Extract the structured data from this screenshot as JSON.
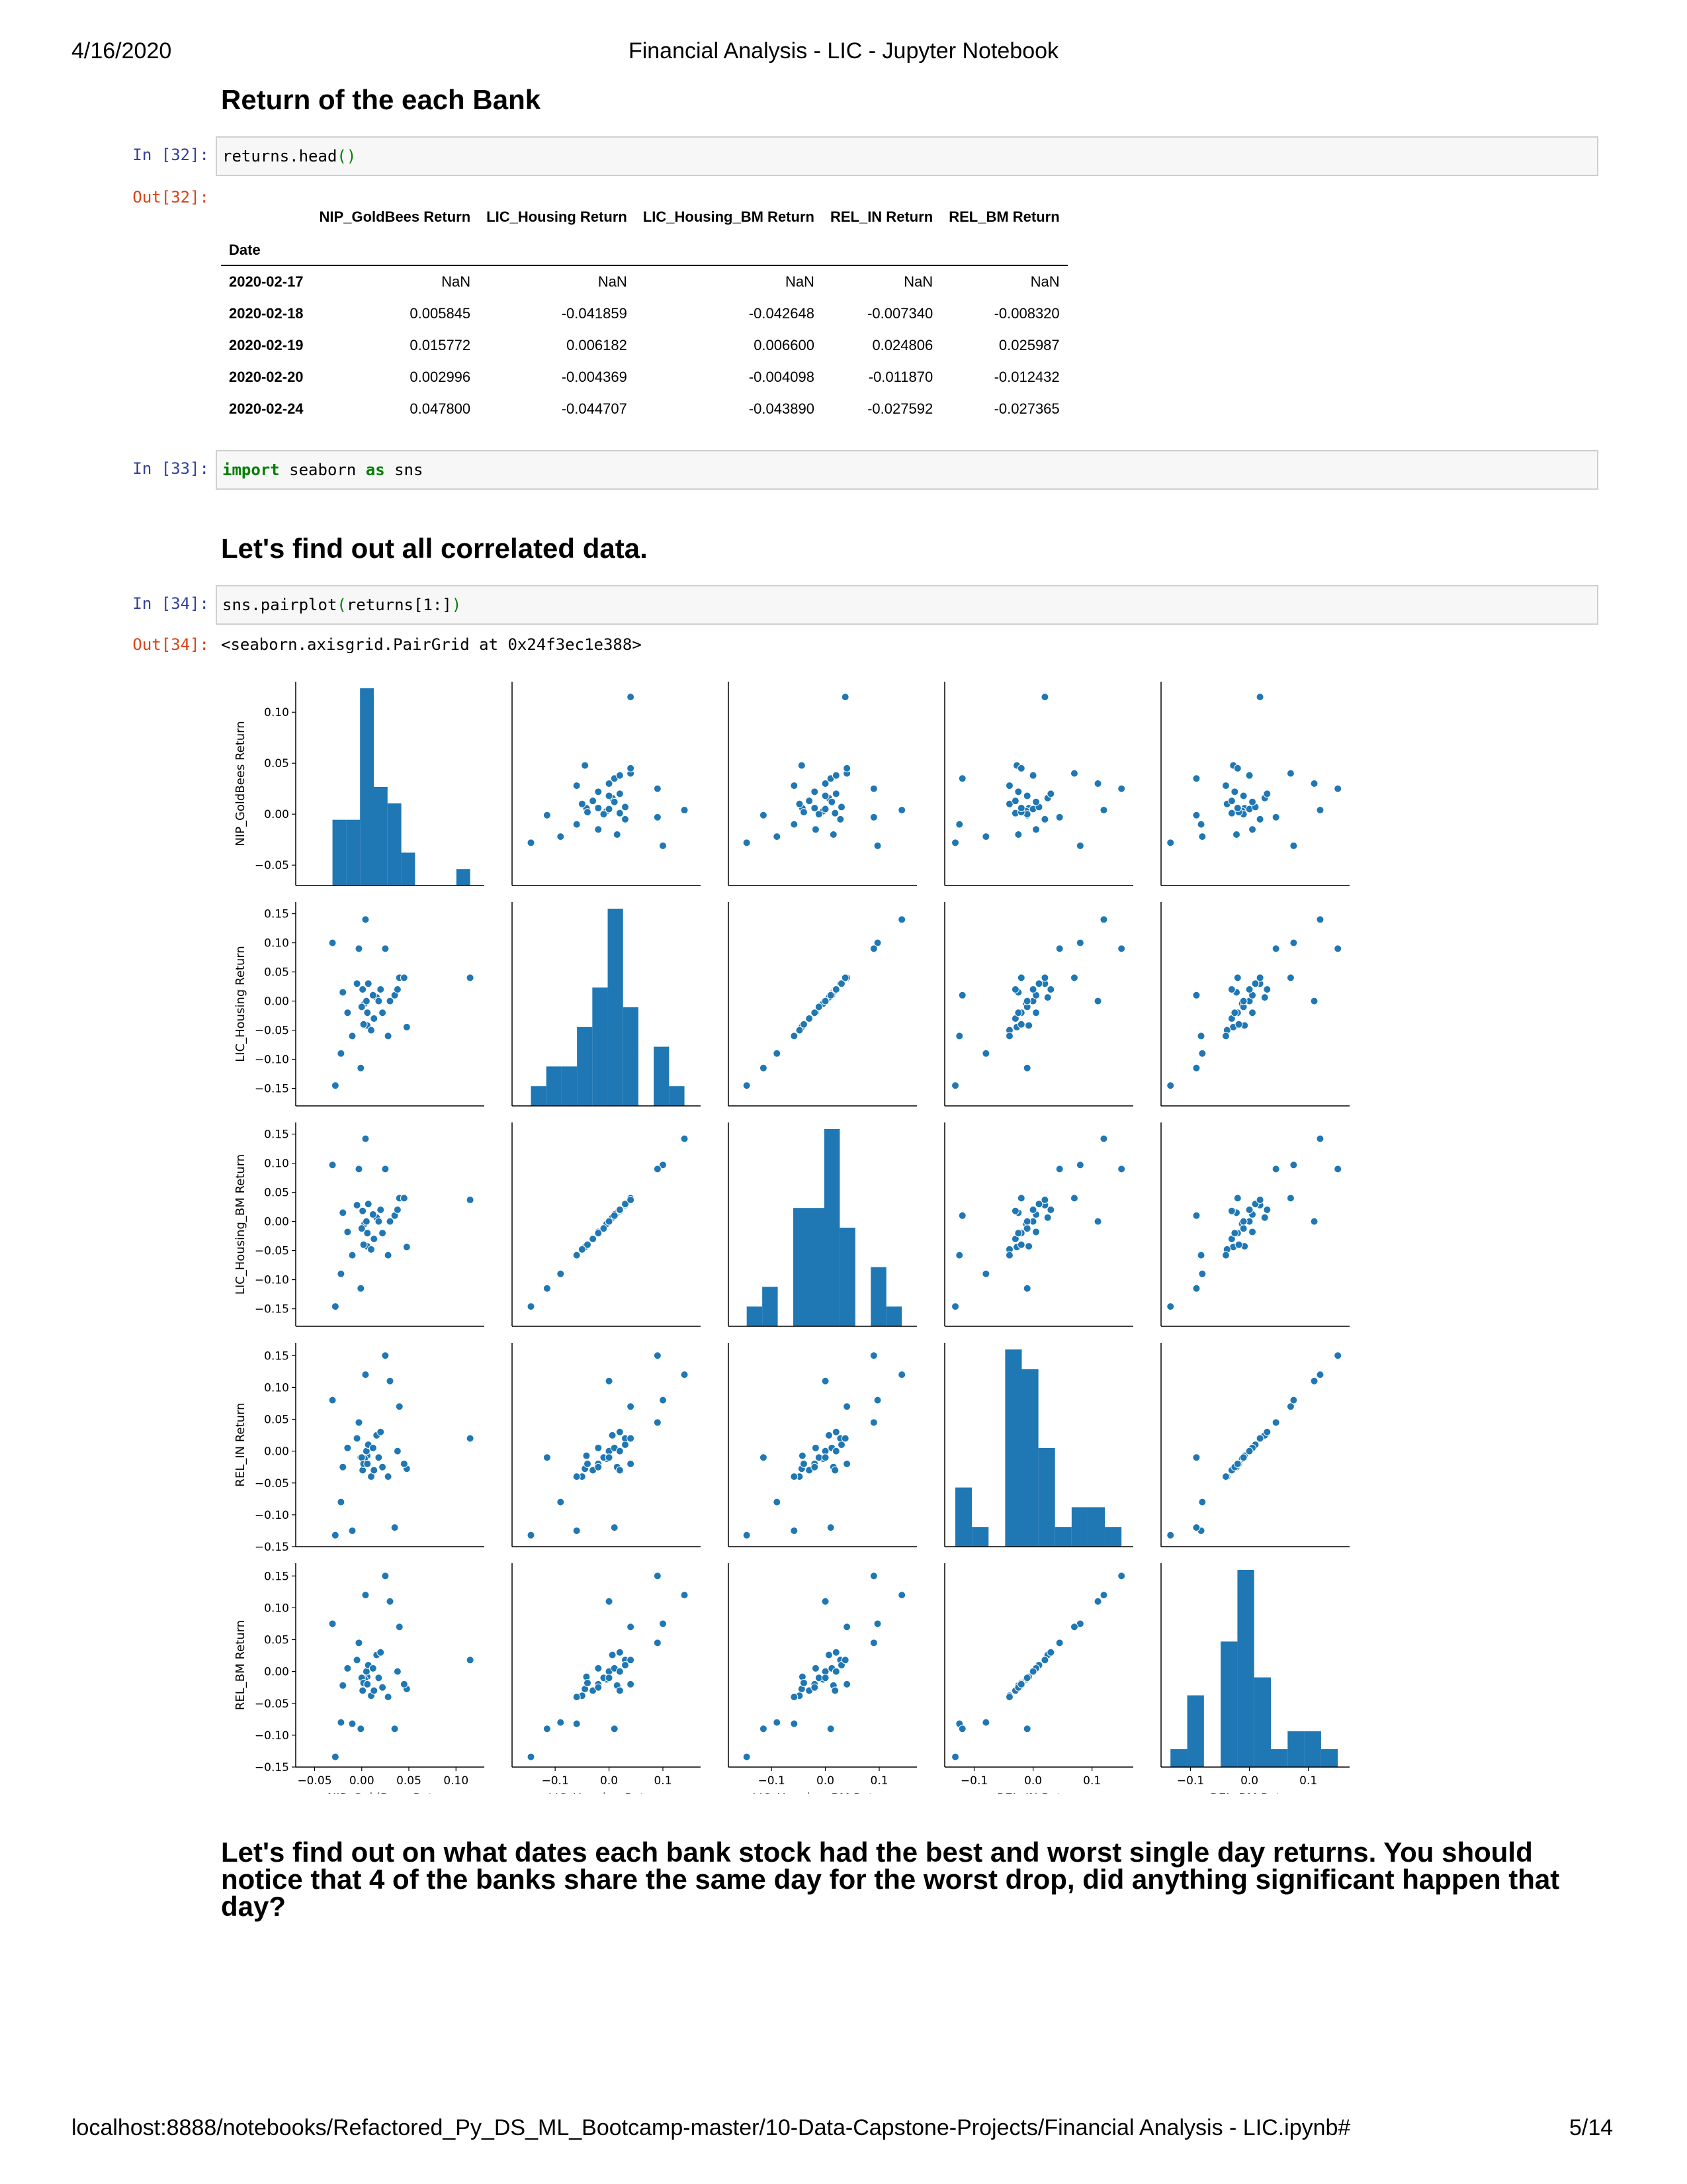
{
  "print_header": {
    "date": "4/16/2020",
    "title": "Financial Analysis - LIC - Jupyter Notebook"
  },
  "print_footer": {
    "url": "localhost:8888/notebooks/Refactored_Py_DS_ML_Bootcamp-master/10-Data-Capstone-Projects/Financial Analysis - LIC.ipynb#",
    "page": "5/14"
  },
  "cells": {
    "h_returns": "Return of the each Bank",
    "c32": {
      "in_prompt": "In [32]:",
      "code_a": "returns.head",
      "code_b": "()",
      "out_prompt": "Out[32]:"
    },
    "c33": {
      "in_prompt": "In [33]:",
      "kw_import": "import",
      "mod": " seaborn ",
      "kw_as": "as",
      "alias": " sns"
    },
    "h_corr": "Let's find out all correlated data.",
    "c34": {
      "in_prompt": "In [34]:",
      "code_a": "sns.pairplot",
      "code_b": "(",
      "code_c": "returns[1:]",
      "code_d": ")",
      "out_prompt": "Out[34]:",
      "out_text": "<seaborn.axisgrid.PairGrid at 0x24f3ec1e388>"
    },
    "para": "Let's find out on what dates each bank stock had the best and worst single day returns. You should notice that 4 of the banks share the same day for the worst drop, did anything significant happen that day?"
  },
  "table": {
    "columns": [
      "NIP_GoldBees Return",
      "LIC_Housing Return",
      "LIC_Housing_BM Return",
      "REL_IN Return",
      "REL_BM Return"
    ],
    "index_name": "Date",
    "rows": [
      {
        "date": "2020-02-17",
        "values": [
          "NaN",
          "NaN",
          "NaN",
          "NaN",
          "NaN"
        ]
      },
      {
        "date": "2020-02-18",
        "values": [
          "0.005845",
          "-0.041859",
          "-0.042648",
          "-0.007340",
          "-0.008320"
        ]
      },
      {
        "date": "2020-02-19",
        "values": [
          "0.015772",
          "0.006182",
          "0.006600",
          "0.024806",
          "0.025987"
        ]
      },
      {
        "date": "2020-02-20",
        "values": [
          "0.002996",
          "-0.004369",
          "-0.004098",
          "-0.011870",
          "-0.012432"
        ]
      },
      {
        "date": "2020-02-24",
        "values": [
          "0.047800",
          "-0.044707",
          "-0.043890",
          "-0.027592",
          "-0.027365"
        ]
      }
    ]
  },
  "chart_data": {
    "type": "scatter",
    "variables": [
      "NIP_GoldBees Return",
      "LIC_Housing Return",
      "LIC_Housing_BM Return",
      "REL_IN Return",
      "REL_BM Return"
    ],
    "color": "#1f77b4",
    "diagonal": "histogram",
    "ticks": [
      [
        "-0.05",
        "0.00",
        "0.05",
        "0.10"
      ],
      [
        "-0.1",
        "0.0",
        "0.1"
      ],
      [
        "-0.1",
        "0.0",
        "0.1"
      ],
      [
        "-0.1",
        "0.0",
        "0.1"
      ],
      [
        "-0.1",
        "0.0",
        "0.1"
      ]
    ],
    "y_ticks": [
      [
        "-0.05",
        "0.00",
        "0.05",
        "0.10"
      ],
      [
        "-0.15",
        "-0.10",
        "-0.05",
        "0.00",
        "0.05",
        "0.10",
        "0.15"
      ],
      [
        "-0.15",
        "-0.10",
        "-0.05",
        "0.00",
        "0.05",
        "0.10",
        "0.15"
      ],
      [
        "-0.15",
        "-0.10",
        "-0.05",
        "0.00",
        "0.05",
        "0.10",
        "0.15"
      ],
      [
        "-0.15",
        "-0.10",
        "-0.05",
        "0.00",
        "0.05",
        "0.10",
        "0.15"
      ]
    ],
    "ranges": [
      [
        -0.07,
        0.13
      ],
      [
        -0.18,
        0.17
      ],
      [
        -0.18,
        0.17
      ],
      [
        -0.15,
        0.17
      ],
      [
        -0.15,
        0.17
      ]
    ],
    "data": [
      [
        0.0058,
        -0.0419,
        -0.0426,
        -0.0073,
        -0.0083
      ],
      [
        0.0158,
        0.0062,
        0.0066,
        0.0248,
        0.026
      ],
      [
        0.003,
        -0.0044,
        -0.0041,
        -0.0119,
        -0.0124
      ],
      [
        0.0478,
        -0.0447,
        -0.0439,
        -0.0276,
        -0.0274
      ],
      [
        -0.031,
        0.1,
        0.097,
        0.08,
        0.075
      ],
      [
        -0.028,
        -0.145,
        -0.146,
        -0.132,
        -0.134
      ],
      [
        -0.022,
        -0.09,
        -0.09,
        -0.08,
        -0.08
      ],
      [
        -0.02,
        0.015,
        0.015,
        -0.025,
        -0.022
      ],
      [
        -0.015,
        -0.02,
        -0.018,
        0.005,
        0.005
      ],
      [
        -0.01,
        -0.06,
        -0.058,
        -0.125,
        -0.082
      ],
      [
        -0.005,
        0.03,
        0.028,
        0.02,
        0.018
      ],
      [
        -0.003,
        0.09,
        0.09,
        0.045,
        0.045
      ],
      [
        -0.001,
        -0.115,
        -0.115,
        -0.01,
        -0.09
      ],
      [
        0.0,
        -0.01,
        -0.012,
        -0.01,
        -0.01
      ],
      [
        0.001,
        0.02,
        0.018,
        -0.03,
        -0.03
      ],
      [
        0.002,
        -0.04,
        -0.04,
        -0.02,
        -0.018
      ],
      [
        0.004,
        0.14,
        0.142,
        0.12,
        0.12
      ],
      [
        0.005,
        0.0,
        0.0,
        0.0,
        0.0
      ],
      [
        0.006,
        -0.02,
        -0.02,
        -0.02,
        -0.02
      ],
      [
        0.007,
        0.03,
        0.03,
        0.01,
        0.01
      ],
      [
        0.01,
        -0.05,
        -0.048,
        -0.04,
        -0.038
      ],
      [
        0.012,
        0.01,
        0.012,
        0.005,
        0.005
      ],
      [
        0.013,
        -0.03,
        -0.03,
        -0.03,
        -0.03
      ],
      [
        0.018,
        0.0,
        0.0,
        -0.01,
        -0.01
      ],
      [
        0.02,
        0.02,
        0.02,
        0.03,
        0.03
      ],
      [
        0.022,
        -0.02,
        -0.02,
        -0.025,
        -0.025
      ],
      [
        0.025,
        0.09,
        0.09,
        0.15,
        0.15
      ],
      [
        0.028,
        -0.06,
        -0.058,
        -0.04,
        -0.04
      ],
      [
        0.03,
        0.0,
        0.0,
        0.11,
        0.11
      ],
      [
        0.035,
        0.01,
        0.01,
        -0.12,
        -0.09
      ],
      [
        0.038,
        0.02,
        0.02,
        0.0,
        0.0
      ],
      [
        0.04,
        0.04,
        0.04,
        0.07,
        0.07
      ],
      [
        0.045,
        0.04,
        0.04,
        -0.02,
        -0.02
      ],
      [
        0.115,
        0.04,
        0.037,
        0.02,
        0.018
      ]
    ],
    "xlabels": [
      "NIP_GoldBees Return",
      "LIC_Housing Return",
      "LIC_Housing_BM Return",
      "REL_IN Return",
      "REL_BM Return"
    ],
    "ylabels": [
      "NIP_GoldBees Return",
      "LIC_Housing Return",
      "LIC_Housing_BM Return",
      "REL_IN Return",
      "REL_BM Return"
    ]
  }
}
